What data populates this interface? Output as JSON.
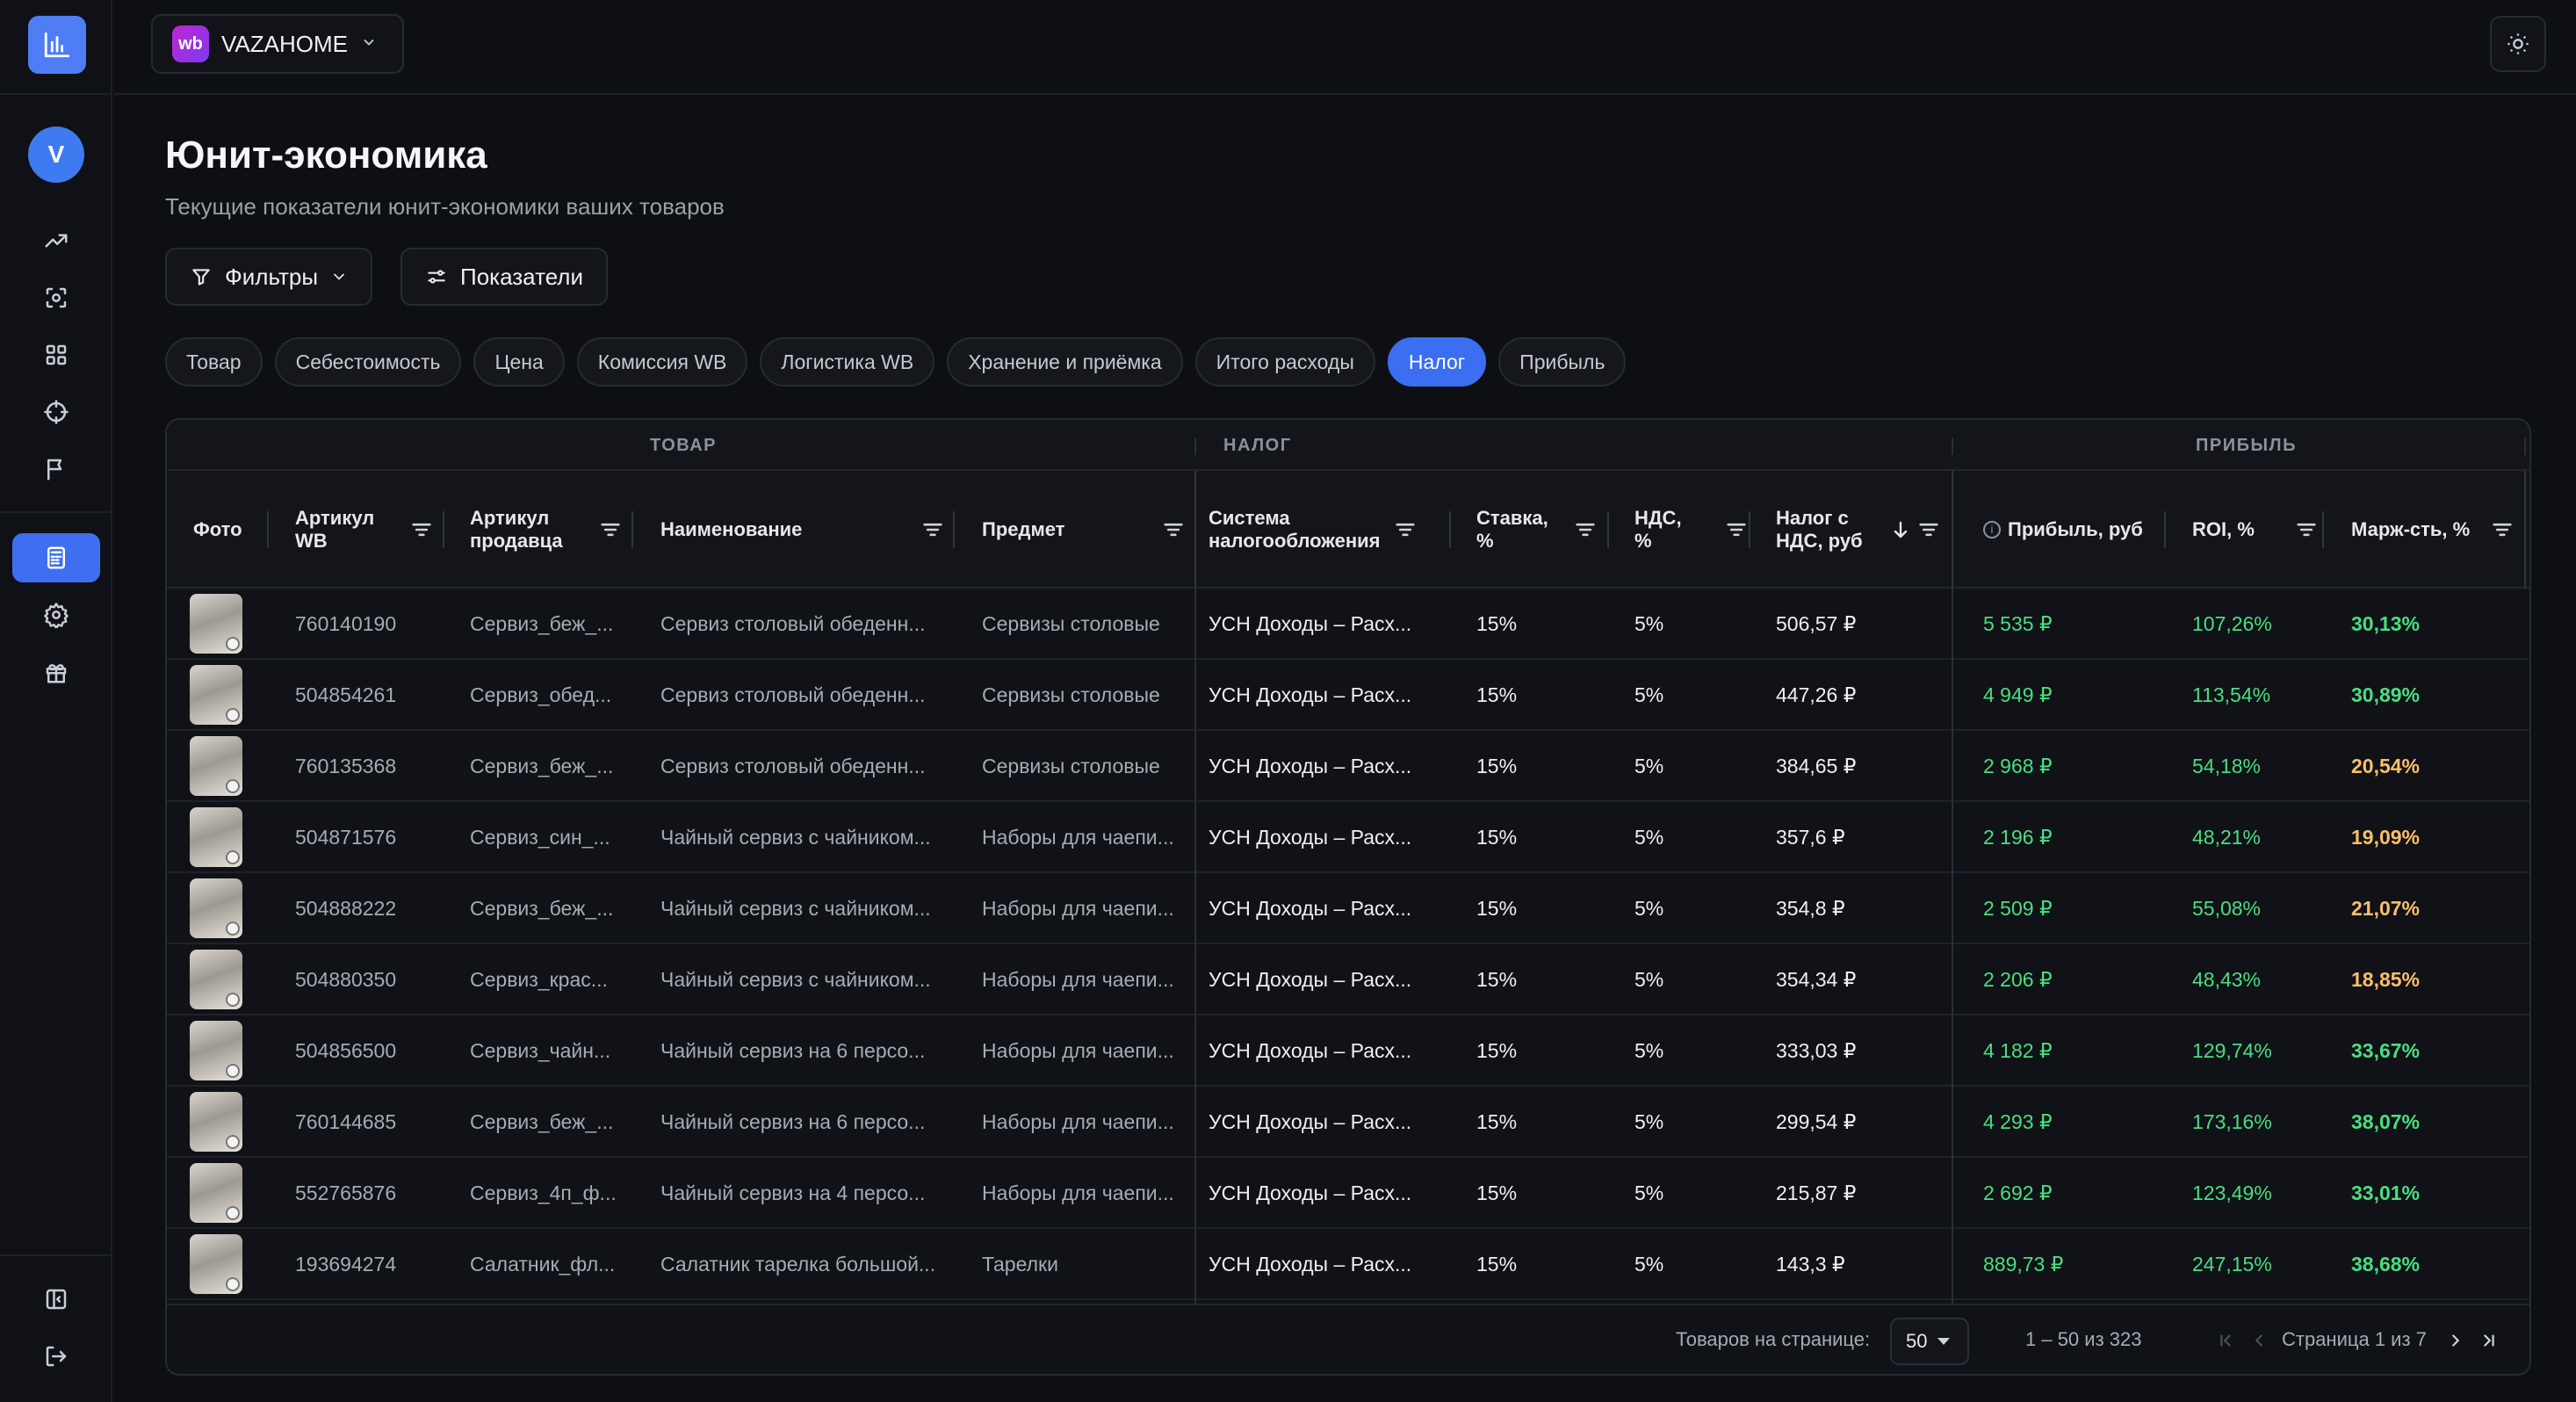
{
  "shop": {
    "badge": "wb",
    "name": "VAZAHOME"
  },
  "user": {
    "initial": "V"
  },
  "page": {
    "title": "Юнит-экономика",
    "subtitle": "Текущие показатели юнит-экономики ваших товаров"
  },
  "toolbar": {
    "filters_label": "Фильтры",
    "metrics_label": "Показатели"
  },
  "chips": [
    "Товар",
    "Себестоимость",
    "Цена",
    "Комиссия WB",
    "Логистика WB",
    "Хранение и приёмка",
    "Итого расходы",
    "Налог",
    "Прибыль"
  ],
  "active_chip": "Налог",
  "groups": {
    "product": "ТОВАР",
    "tax": "НАЛОГ",
    "profit": "ПРИБЫЛЬ"
  },
  "columns": {
    "photo": "Фото",
    "wb_sku_1": "Артикул",
    "wb_sku_2": "WB",
    "seller_sku_1": "Артикул",
    "seller_sku_2": "продавца",
    "name": "Наименование",
    "subject": "Предмет",
    "tax_system_1": "Система",
    "tax_system_2": "налогообложения",
    "rate_1": "Ставка,",
    "rate_2": "%",
    "vat_1": "НДС,",
    "vat_2": "%",
    "tax_vat_1": "Налог с",
    "tax_vat_2": "НДС, руб",
    "profit": "Прибыль, руб",
    "roi": "ROI, %",
    "margin": "Марж-сть, %"
  },
  "rows": [
    {
      "wb": "760140190",
      "seller": "Сервиз_беж_...",
      "name": "Сервиз столовый обеденн...",
      "subject": "Сервизы столовые",
      "tax_system": "УСН Доходы – Расх...",
      "rate": "15%",
      "vat": "5%",
      "tax": "506,57 ₽",
      "profit": "5 535 ₽",
      "roi": "107,26%",
      "margin": "30,13%",
      "margin_level": "good"
    },
    {
      "wb": "504854261",
      "seller": "Сервиз_обед...",
      "name": "Сервиз столовый обеденн...",
      "subject": "Сервизы столовые",
      "tax_system": "УСН Доходы – Расх...",
      "rate": "15%",
      "vat": "5%",
      "tax": "447,26 ₽",
      "profit": "4 949 ₽",
      "roi": "113,54%",
      "margin": "30,89%",
      "margin_level": "good"
    },
    {
      "wb": "760135368",
      "seller": "Сервиз_беж_...",
      "name": "Сервиз столовый обеденн...",
      "subject": "Сервизы столовые",
      "tax_system": "УСН Доходы – Расх...",
      "rate": "15%",
      "vat": "5%",
      "tax": "384,65 ₽",
      "profit": "2 968 ₽",
      "roi": "54,18%",
      "margin": "20,54%",
      "margin_level": "mid"
    },
    {
      "wb": "504871576",
      "seller": "Сервиз_син_...",
      "name": "Чайный сервиз с чайником...",
      "subject": "Наборы для чаепи...",
      "tax_system": "УСН Доходы – Расх...",
      "rate": "15%",
      "vat": "5%",
      "tax": "357,6 ₽",
      "profit": "2 196 ₽",
      "roi": "48,21%",
      "margin": "19,09%",
      "margin_level": "mid"
    },
    {
      "wb": "504888222",
      "seller": "Сервиз_беж_...",
      "name": "Чайный сервиз с чайником...",
      "subject": "Наборы для чаепи...",
      "tax_system": "УСН Доходы – Расх...",
      "rate": "15%",
      "vat": "5%",
      "tax": "354,8 ₽",
      "profit": "2 509 ₽",
      "roi": "55,08%",
      "margin": "21,07%",
      "margin_level": "mid"
    },
    {
      "wb": "504880350",
      "seller": "Сервиз_крас...",
      "name": "Чайный сервиз с чайником...",
      "subject": "Наборы для чаепи...",
      "tax_system": "УСН Доходы – Расх...",
      "rate": "15%",
      "vat": "5%",
      "tax": "354,34 ₽",
      "profit": "2 206 ₽",
      "roi": "48,43%",
      "margin": "18,85%",
      "margin_level": "mid"
    },
    {
      "wb": "504856500",
      "seller": "Сервиз_чайн...",
      "name": "Чайный сервиз на 6 персо...",
      "subject": "Наборы для чаепи...",
      "tax_system": "УСН Доходы – Расх...",
      "rate": "15%",
      "vat": "5%",
      "tax": "333,03 ₽",
      "profit": "4 182 ₽",
      "roi": "129,74%",
      "margin": "33,67%",
      "margin_level": "good"
    },
    {
      "wb": "760144685",
      "seller": "Сервиз_беж_...",
      "name": "Чайный сервиз на 6 персо...",
      "subject": "Наборы для чаепи...",
      "tax_system": "УСН Доходы – Расх...",
      "rate": "15%",
      "vat": "5%",
      "tax": "299,54 ₽",
      "profit": "4 293 ₽",
      "roi": "173,16%",
      "margin": "38,07%",
      "margin_level": "good"
    },
    {
      "wb": "552765876",
      "seller": "Сервиз_4п_ф...",
      "name": "Чайный сервиз на 4 персо...",
      "subject": "Наборы для чаепи...",
      "tax_system": "УСН Доходы – Расх...",
      "rate": "15%",
      "vat": "5%",
      "tax": "215,87 ₽",
      "profit": "2 692 ₽",
      "roi": "123,49%",
      "margin": "33,01%",
      "margin_level": "good"
    },
    {
      "wb": "193694274",
      "seller": "Салатник_фл...",
      "name": "Салатник тарелка большой...",
      "subject": "Тарелки",
      "tax_system": "УСН Доходы – Расх...",
      "rate": "15%",
      "vat": "5%",
      "tax": "143,3 ₽",
      "profit": "889,73 ₽",
      "roi": "247,15%",
      "margin": "38,68%",
      "margin_level": "good"
    }
  ],
  "pagination": {
    "per_page_label": "Товаров на странице:",
    "per_page": "50",
    "range": "1 – 50 из 323",
    "page_label": "Страница 1 из 7"
  },
  "colors": {
    "accent": "#3b6ef0",
    "positive": "#4ade80",
    "warning": "#fbbf6a"
  }
}
